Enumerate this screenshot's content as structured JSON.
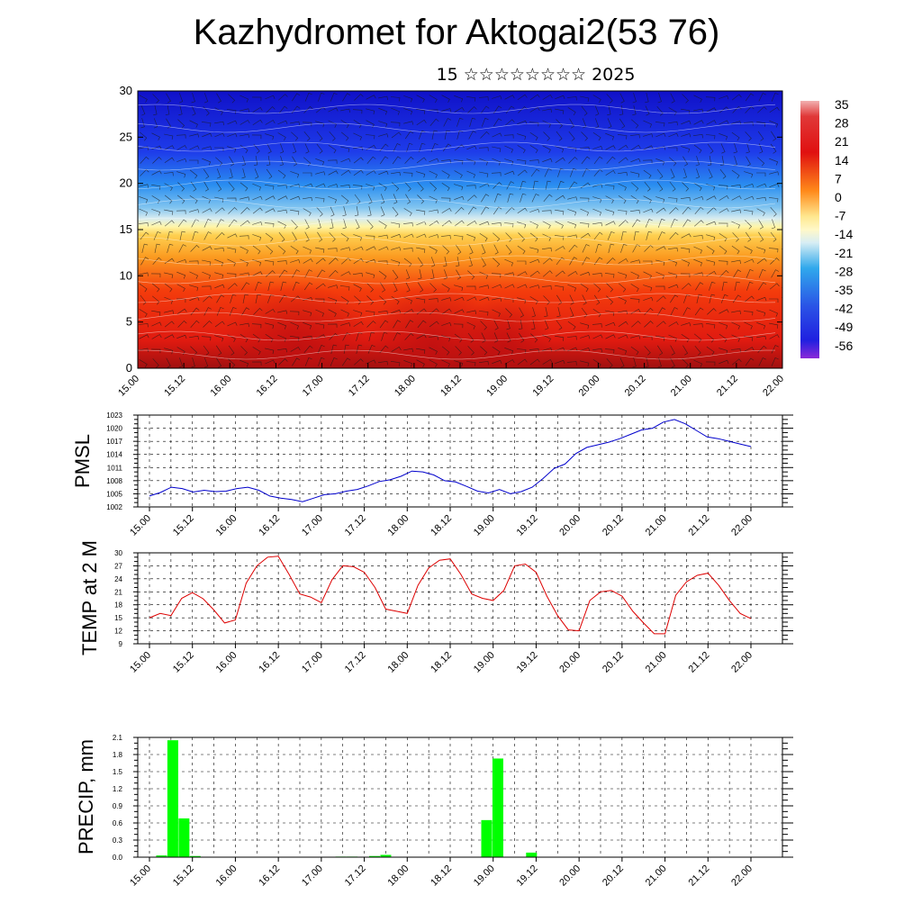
{
  "title": "Kazhydromet for Aktogai2(53 76)",
  "subtitle": "15 ☆☆☆☆☆☆☆☆ 2025",
  "x_ticks": [
    "15.00",
    "15.12",
    "16.00",
    "16.12",
    "17.00",
    "17.12",
    "18.00",
    "18.12",
    "19.00",
    "19.12",
    "20.00",
    "20.12",
    "21.00",
    "21.12",
    "22.00"
  ],
  "chart_data": [
    {
      "type": "heatmap",
      "y_ticks": [
        "0",
        "5",
        "10",
        "15",
        "20",
        "25",
        "30"
      ],
      "ylim": [
        0,
        30
      ],
      "colorbar_labels": [
        "35",
        "28",
        "21",
        "14",
        "7",
        "0",
        "-7",
        "-14",
        "-21",
        "-28",
        "-35",
        "-42",
        "-49",
        "-56"
      ],
      "colorbar_range": [
        -63,
        42
      ],
      "overlay": "wind barbs and contours"
    },
    {
      "type": "line",
      "ylabel": "PMSL",
      "y_ticks": [
        "1023",
        "1020",
        "1017",
        "1014",
        "1011",
        "1008",
        "1005",
        "1002"
      ],
      "ylim": [
        1002,
        1023
      ],
      "line_color": "#0000cc",
      "values": [
        1004.5,
        1005.3,
        1006.5,
        1006.2,
        1005.4,
        1005.8,
        1005.5,
        1005.6,
        1006.2,
        1006.5,
        1005.8,
        1004.5,
        1004.0,
        1003.7,
        1003.2,
        1004.0,
        1004.8,
        1005.0,
        1005.6,
        1006.0,
        1006.8,
        1007.8,
        1008.2,
        1009.0,
        1010.2,
        1010.0,
        1009.3,
        1008.0,
        1007.7,
        1006.7,
        1005.6,
        1005.2,
        1006.0,
        1005.0,
        1005.5,
        1006.5,
        1008.5,
        1010.8,
        1011.8,
        1014.2,
        1015.6,
        1016.2,
        1016.8,
        1017.6,
        1018.6,
        1019.6,
        1020.0,
        1021.4,
        1022.0,
        1021.0,
        1019.5,
        1018.0,
        1017.6,
        1017.0,
        1016.4,
        1015.8
      ]
    },
    {
      "type": "line",
      "ylabel": "TEMP at 2 M",
      "y_ticks": [
        "30",
        "27",
        "24",
        "21",
        "18",
        "15",
        "12",
        "9"
      ],
      "ylim": [
        9,
        30
      ],
      "line_color": "#dd0000",
      "values": [
        15.0,
        16.0,
        15.5,
        19.5,
        20.8,
        19.4,
        16.8,
        13.8,
        14.5,
        23.0,
        27.0,
        29.0,
        29.2,
        25.0,
        20.5,
        19.8,
        18.5,
        23.8,
        27.0,
        26.8,
        25.5,
        22.0,
        17.0,
        16.5,
        16.0,
        22.5,
        26.5,
        28.3,
        28.6,
        25.0,
        20.5,
        19.5,
        19.0,
        21.3,
        27.0,
        27.4,
        25.5,
        20.0,
        15.5,
        12.2,
        12.0,
        19.0,
        21.0,
        21.3,
        20.0,
        16.5,
        13.8,
        11.3,
        11.3,
        20.2,
        23.3,
        24.8,
        25.3,
        22.5,
        19.0,
        16.0,
        14.8
      ]
    },
    {
      "type": "bar",
      "ylabel": "PRECIP, mm",
      "y_ticks": [
        "2.1",
        "1.8",
        "1.5",
        "1.2",
        "0.9",
        "0.6",
        "0.3",
        "0.0"
      ],
      "ylim": [
        0,
        2.1
      ],
      "bar_color": "#00ff00",
      "values": [
        0,
        0.03,
        2.05,
        0.68,
        0.02,
        0,
        0,
        0,
        0,
        0,
        0,
        0,
        0,
        0,
        0,
        0,
        0,
        0.01,
        0.01,
        0,
        0.02,
        0.04,
        0,
        0,
        0,
        0,
        0,
        0,
        0,
        0,
        0.65,
        1.73,
        0,
        0,
        0.08,
        0,
        0,
        0,
        0,
        0,
        0,
        0,
        0,
        0,
        0,
        0,
        0,
        0,
        0,
        0,
        0,
        0,
        0,
        0,
        0,
        0,
        0
      ]
    }
  ]
}
